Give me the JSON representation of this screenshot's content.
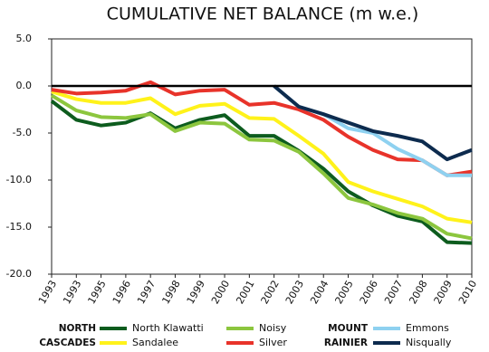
{
  "chart_data": {
    "type": "line",
    "title": "CUMULATIVE NET BALANCE (m w.e.)",
    "categories": [
      "1993",
      "1993",
      "1995",
      "1996",
      "1997",
      "1998",
      "1999",
      "2000",
      "2001",
      "2002",
      "2003",
      "2004",
      "2005",
      "2006",
      "2007",
      "2008",
      "2009",
      "2010"
    ],
    "ylim": [
      -20,
      5
    ],
    "yticks": [
      {
        "value": 5,
        "label": "5.0"
      },
      {
        "value": 0,
        "label": "0.0"
      },
      {
        "value": -5,
        "label": "-5.0"
      },
      {
        "value": -10,
        "label": "-10.0"
      },
      {
        "value": -15,
        "label": "-15.0"
      },
      {
        "value": -20,
        "label": "-20.0"
      }
    ],
    "baseline": 0,
    "grid": false,
    "series": [
      {
        "name": "North Klawatti",
        "color": "#0d5c1e",
        "values": [
          -1.6,
          -3.6,
          -4.2,
          -3.9,
          -2.9,
          -4.5,
          -3.6,
          -3.1,
          -5.3,
          -5.3,
          -6.9,
          -8.8,
          -11.2,
          -12.7,
          -13.8,
          -14.4,
          -16.6,
          -16.7
        ]
      },
      {
        "name": "Noisy",
        "color": "#8cc63e",
        "values": [
          -1.0,
          -2.6,
          -3.3,
          -3.4,
          -3.0,
          -4.8,
          -3.9,
          -4.0,
          -5.7,
          -5.8,
          -7.0,
          -9.3,
          -11.9,
          -12.6,
          -13.5,
          -14.1,
          -15.7,
          -16.2
        ]
      },
      {
        "name": "Sandalee",
        "color": "#fff21a",
        "values": [
          -0.6,
          -1.4,
          -1.8,
          -1.8,
          -1.3,
          -3.0,
          -2.1,
          -1.9,
          -3.4,
          -3.5,
          -5.3,
          -7.2,
          -10.2,
          -11.2,
          -12.0,
          -12.8,
          -14.1,
          -14.5
        ]
      },
      {
        "name": "Silver",
        "color": "#e8332a",
        "values": [
          -0.4,
          -0.8,
          -0.7,
          -0.5,
          0.4,
          -0.9,
          -0.5,
          -0.4,
          -2.0,
          -1.8,
          -2.5,
          -3.6,
          -5.4,
          -6.8,
          -7.8,
          -7.9,
          -9.5,
          -9.1
        ]
      },
      {
        "name": "Emmons",
        "color": "#8ed1f0",
        "values": [
          null,
          null,
          null,
          null,
          null,
          null,
          null,
          null,
          null,
          0,
          -2.2,
          -3.0,
          -4.5,
          -5.0,
          -6.7,
          -7.9,
          -9.5,
          -9.5
        ]
      },
      {
        "name": "Nisqually",
        "color": "#0d2b4e",
        "values": [
          null,
          null,
          null,
          null,
          null,
          null,
          null,
          null,
          null,
          0,
          -2.2,
          -3.0,
          -3.9,
          -4.8,
          -5.3,
          -5.9,
          -7.8,
          -6.8
        ]
      }
    ],
    "legend_groups": [
      {
        "label_lines": [
          "NORTH",
          "CASCADES"
        ]
      },
      {
        "label_lines": [
          "MOUNT",
          "RAINIER"
        ]
      }
    ]
  }
}
